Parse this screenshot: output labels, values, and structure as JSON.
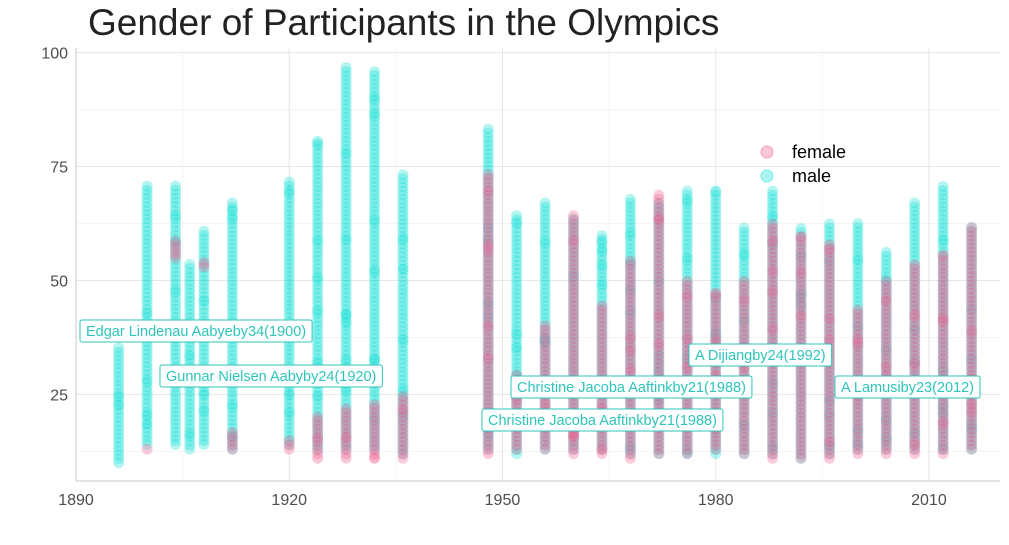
{
  "chart_data": {
    "type": "scatter",
    "title": "Gender of Participants in the Olympics",
    "xlabel": "",
    "ylabel": "",
    "xlim": [
      1890,
      2020
    ],
    "ylim": [
      6,
      101
    ],
    "x_ticks": [
      1890,
      1920,
      1950,
      1980,
      2010
    ],
    "y_ticks": [
      25,
      50,
      75,
      100
    ],
    "grid": true,
    "legend": "inside-top-right",
    "colors": {
      "female": "#f0608e",
      "male": "#16e0d8",
      "annotation": "#2ec5ba"
    },
    "series": [
      {
        "name": "female",
        "color": "#f0608e",
        "columns": [
          {
            "x": 1900,
            "min": 13,
            "max": 13
          },
          {
            "x": 1904,
            "min": 55,
            "max": 59
          },
          {
            "x": 1908,
            "min": 53,
            "max": 54
          },
          {
            "x": 1912,
            "min": 13,
            "max": 17
          },
          {
            "x": 1920,
            "min": 13,
            "max": 15
          },
          {
            "x": 1924,
            "min": 11,
            "max": 20
          },
          {
            "x": 1928,
            "min": 11,
            "max": 22
          },
          {
            "x": 1932,
            "min": 11,
            "max": 23
          },
          {
            "x": 1936,
            "min": 11,
            "max": 25
          },
          {
            "x": 1948,
            "min": 12,
            "max": 74
          },
          {
            "x": 1952,
            "min": 13,
            "max": 30
          },
          {
            "x": 1956,
            "min": 13,
            "max": 40
          },
          {
            "x": 1960,
            "min": 12,
            "max": 65
          },
          {
            "x": 1964,
            "min": 12,
            "max": 45
          },
          {
            "x": 1968,
            "min": 11,
            "max": 55
          },
          {
            "x": 1972,
            "min": 12,
            "max": 69
          },
          {
            "x": 1976,
            "min": 12,
            "max": 50
          },
          {
            "x": 1980,
            "min": 13,
            "max": 48
          },
          {
            "x": 1984,
            "min": 12,
            "max": 50
          },
          {
            "x": 1988,
            "min": 11,
            "max": 63
          },
          {
            "x": 1992,
            "min": 11,
            "max": 60
          },
          {
            "x": 1996,
            "min": 11,
            "max": 58
          },
          {
            "x": 2000,
            "min": 12,
            "max": 44
          },
          {
            "x": 2004,
            "min": 12,
            "max": 50
          },
          {
            "x": 2008,
            "min": 12,
            "max": 54
          },
          {
            "x": 2012,
            "min": 12,
            "max": 56
          },
          {
            "x": 2016,
            "min": 13,
            "max": 62
          }
        ]
      },
      {
        "name": "male",
        "color": "#16e0d8",
        "columns": [
          {
            "x": 1896,
            "min": 10,
            "max": 36
          },
          {
            "x": 1900,
            "min": 14,
            "max": 71
          },
          {
            "x": 1904,
            "min": 14,
            "max": 71
          },
          {
            "x": 1906,
            "min": 13,
            "max": 54
          },
          {
            "x": 1908,
            "min": 14,
            "max": 61
          },
          {
            "x": 1912,
            "min": 13,
            "max": 67
          },
          {
            "x": 1920,
            "min": 14,
            "max": 72
          },
          {
            "x": 1924,
            "min": 13,
            "max": 81
          },
          {
            "x": 1928,
            "min": 13,
            "max": 97
          },
          {
            "x": 1932,
            "min": 13,
            "max": 96
          },
          {
            "x": 1936,
            "min": 12,
            "max": 74
          },
          {
            "x": 1948,
            "min": 13,
            "max": 84
          },
          {
            "x": 1952,
            "min": 12,
            "max": 65
          },
          {
            "x": 1956,
            "min": 13,
            "max": 67
          },
          {
            "x": 1960,
            "min": 13,
            "max": 64
          },
          {
            "x": 1964,
            "min": 13,
            "max": 60
          },
          {
            "x": 1968,
            "min": 12,
            "max": 68
          },
          {
            "x": 1972,
            "min": 12,
            "max": 67
          },
          {
            "x": 1976,
            "min": 12,
            "max": 70
          },
          {
            "x": 1980,
            "min": 12,
            "max": 70
          },
          {
            "x": 1984,
            "min": 12,
            "max": 62
          },
          {
            "x": 1988,
            "min": 12,
            "max": 70
          },
          {
            "x": 1992,
            "min": 11,
            "max": 62
          },
          {
            "x": 1996,
            "min": 12,
            "max": 63
          },
          {
            "x": 2000,
            "min": 13,
            "max": 63
          },
          {
            "x": 2004,
            "min": 13,
            "max": 57
          },
          {
            "x": 2008,
            "min": 13,
            "max": 67
          },
          {
            "x": 2012,
            "min": 13,
            "max": 71
          },
          {
            "x": 2016,
            "min": 13,
            "max": 62
          }
        ]
      }
    ],
    "annotations": [
      {
        "text": "Edgar Lindenau Aabyeby34(1900)",
        "x": 1900,
        "y": 34
      },
      {
        "text": "Gunnar Nielsen Aabyby24(1920)",
        "x": 1920,
        "y": 24
      },
      {
        "text": "Christine Jacoba Aaftinkby21(1988)",
        "x": 1988,
        "y": 21
      },
      {
        "text": "Christine Jacoba Aaftinkby21(1988)",
        "x": 1988,
        "y": 21
      },
      {
        "text": "A Dijiangby24(1992)",
        "x": 1992,
        "y": 24
      },
      {
        "text": "A Lamusiby23(2012)",
        "x": 2012,
        "y": 23
      }
    ]
  }
}
